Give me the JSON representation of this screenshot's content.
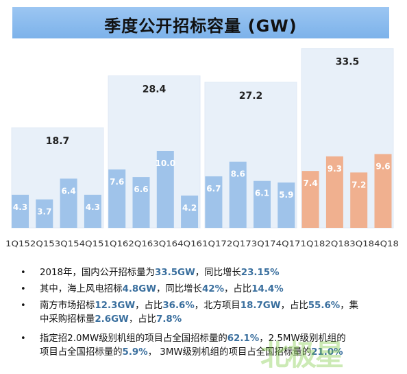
{
  "chart_data": {
    "type": "bar",
    "title": "季度公开招标容量 (GW)",
    "categories": [
      "1Q15",
      "2Q15",
      "3Q15",
      "4Q15",
      "1Q16",
      "2Q16",
      "3Q16",
      "4Q16",
      "1Q17",
      "2Q17",
      "3Q17",
      "4Q17",
      "1Q18",
      "2Q18",
      "3Q18",
      "4Q18"
    ],
    "x_axis_text": "1Q152Q153Q154Q151Q162Q163Q164Q161Q172Q173Q174Q171Q182Q183Q184Q18",
    "values": [
      4.3,
      3.7,
      6.4,
      4.3,
      7.6,
      6.6,
      10.0,
      4.2,
      6.7,
      8.6,
      6.1,
      5.9,
      7.4,
      9.3,
      7.2,
      9.6
    ],
    "value_labels": [
      "4.3",
      "3.7",
      "6.4",
      "4.3",
      "7.6",
      "6.6",
      "10.0",
      "4.2",
      "6.7",
      "8.6",
      "6.1",
      "5.9",
      "7.4",
      "9.3",
      "7.2",
      "9.6"
    ],
    "year_totals": [
      {
        "year": "2015",
        "total": 18.7
      },
      {
        "year": "2016",
        "total": 28.4
      },
      {
        "year": "2017",
        "total": 27.2
      },
      {
        "year": "2018",
        "total": 33.5
      }
    ],
    "colors": {
      "bar_default": "#9fc3ea",
      "bar_2018": "#f0b08f",
      "box": "#e8f0f9"
    }
  },
  "bullets": [
    {
      "segments": [
        {
          "t": "2018年，国内公开招标量为",
          "hl": false
        },
        {
          "t": "33.5GW",
          "hl": true
        },
        {
          "t": "，同比增长",
          "hl": false
        },
        {
          "t": "23.15%",
          "hl": true
        }
      ]
    },
    {
      "segments": [
        {
          "t": "其中，海上风电招标",
          "hl": false
        },
        {
          "t": "4.8GW",
          "hl": true
        },
        {
          "t": "，同比增长",
          "hl": false
        },
        {
          "t": "42%",
          "hl": true
        },
        {
          "t": "，占比",
          "hl": false
        },
        {
          "t": "14.4%",
          "hl": true
        }
      ]
    },
    {
      "segments": [
        {
          "t": "南方市场招标",
          "hl": false
        },
        {
          "t": "12.3GW",
          "hl": true
        },
        {
          "t": "，占比",
          "hl": false
        },
        {
          "t": "36.6%",
          "hl": true
        },
        {
          "t": "，北方项目",
          "hl": false
        },
        {
          "t": "18.7GW",
          "hl": true
        },
        {
          "t": "，占比",
          "hl": false
        },
        {
          "t": "55.6%",
          "hl": true
        },
        {
          "t": "，集",
          "hl": false
        },
        {
          "br": true
        },
        {
          "t": "中采购招标量",
          "hl": false
        },
        {
          "t": "2.6GW",
          "hl": true
        },
        {
          "t": "，占比",
          "hl": false
        },
        {
          "t": "7.8%",
          "hl": true
        }
      ]
    },
    {
      "segments": [
        {
          "t": "指定招2.0MW级别机组的项目占全国招标量的",
          "hl": false
        },
        {
          "t": "62.1%",
          "hl": true
        },
        {
          "t": "，2.5MW级别机组的",
          "hl": false
        },
        {
          "br": true
        },
        {
          "t": "项目占全国招标量的",
          "hl": false
        },
        {
          "t": "5.9%",
          "hl": true
        },
        {
          "t": "， 3MW级别机组的项目占全国招标量的",
          "hl": false
        },
        {
          "t": "21.0%",
          "hl": true
        }
      ]
    }
  ],
  "watermark": "北极星"
}
